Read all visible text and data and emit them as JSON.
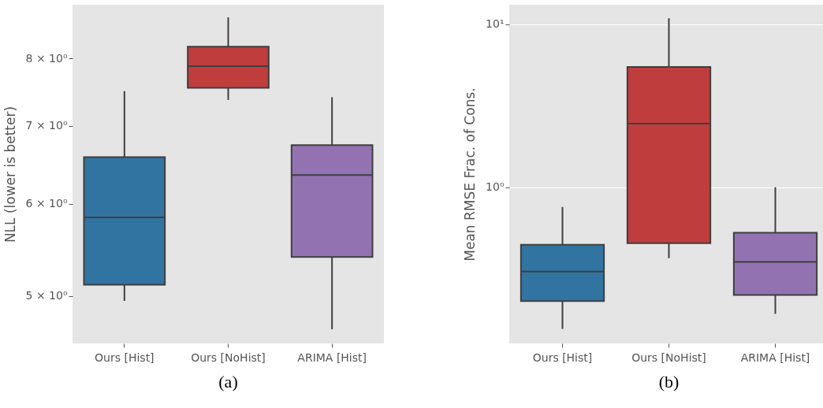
{
  "chart_data": [
    {
      "type": "box",
      "categories": [
        "Ours [Hist]",
        "Ours [NoHist]",
        "ARIMA [Hist]"
      ],
      "ylabel": "NLL (lower is better)",
      "log": true,
      "grid": false,
      "ylim": [
        4.55,
        8.9
      ],
      "yticks": [
        {
          "value": 5,
          "label": "5 × 10⁰"
        },
        {
          "value": 6,
          "label": "6 × 10⁰"
        },
        {
          "value": 7,
          "label": "7 × 10⁰"
        },
        {
          "value": 8,
          "label": "8 × 10⁰"
        }
      ],
      "colors": [
        "#3274a1",
        "#c03d3e",
        "#9372b2"
      ],
      "boxes": [
        {
          "low": 4.95,
          "q1": 5.11,
          "median": 5.84,
          "q3": 6.58,
          "high": 7.5
        },
        {
          "low": 7.37,
          "q1": 7.55,
          "median": 7.88,
          "q3": 8.19,
          "high": 8.68
        },
        {
          "low": 4.68,
          "q1": 5.4,
          "median": 6.35,
          "q3": 6.74,
          "high": 7.41
        }
      ],
      "annotations": [
        "(a)"
      ]
    },
    {
      "type": "box",
      "categories": [
        "Ours [Hist]",
        "Ours [NoHist]",
        "ARIMA [Hist]"
      ],
      "ylabel": "Mean RMSE Frac. of Cons.",
      "log": true,
      "grid": "y",
      "ylim": [
        0.11,
        13.2
      ],
      "yticks": [
        {
          "value": 1,
          "label": "10⁰"
        },
        {
          "value": 10,
          "label": "10¹"
        }
      ],
      "colors": [
        "#3274a1",
        "#c03d3e",
        "#9372b2"
      ],
      "boxes": [
        {
          "low": 0.135,
          "q1": 0.2,
          "median": 0.304,
          "q3": 0.444,
          "high": 0.757
        },
        {
          "low": 0.367,
          "q1": 0.454,
          "median": 2.46,
          "q3": 5.48,
          "high": 10.9
        },
        {
          "low": 0.167,
          "q1": 0.218,
          "median": 0.348,
          "q3": 0.525,
          "high": 1.0
        }
      ],
      "annotations": [
        "(b)"
      ]
    }
  ]
}
